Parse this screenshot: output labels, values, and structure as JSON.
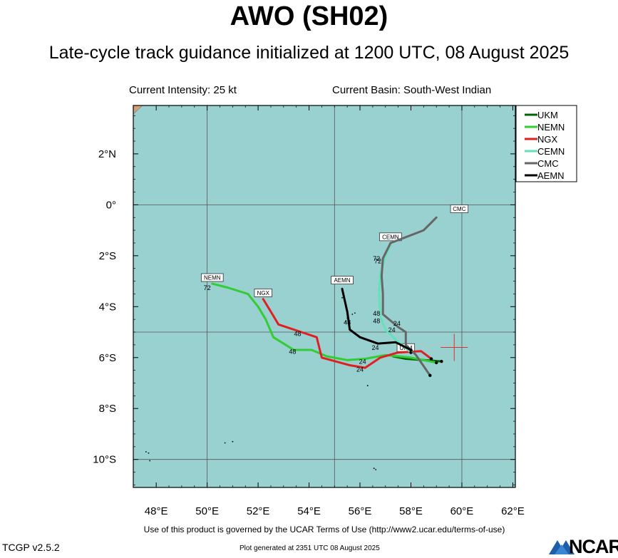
{
  "title": "AWO (SH02)",
  "subtitle": "Late-cycle track guidance initialized at 1200 UTC, 08 August 2025",
  "current_intensity": "Current Intensity: 25 kt",
  "current_basin": "Current Basin: South-West Indian",
  "footer": {
    "terms": "Use of this product is governed by the UCAR Terms of Use (http://www2.ucar.edu/terms-of-use)",
    "version": "TCGP v2.5.2",
    "generated": "Plot generated at 2351 UTC   08 August 2025",
    "logo_text": "NCAR"
  },
  "map": {
    "lon_range": [
      47.1,
      62.1
    ],
    "lat_range": [
      -11.1,
      3.9
    ],
    "lon_ticks": [
      {
        "value": 48,
        "label": "48°E"
      },
      {
        "value": 50,
        "label": "50°E"
      },
      {
        "value": 52,
        "label": "52°E"
      },
      {
        "value": 54,
        "label": "54°E"
      },
      {
        "value": 56,
        "label": "56°E"
      },
      {
        "value": 58,
        "label": "58°E"
      },
      {
        "value": 60,
        "label": "60°E"
      },
      {
        "value": 62,
        "label": "62°E"
      }
    ],
    "lat_ticks": [
      {
        "value": 2,
        "label": "2°N"
      },
      {
        "value": 0,
        "label": "0°"
      },
      {
        "value": -2,
        "label": "2°S"
      },
      {
        "value": -4,
        "label": "4°S"
      },
      {
        "value": -6,
        "label": "6°S"
      },
      {
        "value": -8,
        "label": "8°S"
      },
      {
        "value": -10,
        "label": "10°S"
      }
    ],
    "grid_lon": [
      50,
      55,
      60
    ],
    "grid_lat": [
      0,
      -5,
      -10
    ],
    "ocean_color": "#99d0d0",
    "current_position": {
      "lon": 59.7,
      "lat": -5.6
    },
    "legend_placement": "top-right"
  },
  "legend": [
    {
      "name": "UKM",
      "color": "#006400"
    },
    {
      "name": "NEMN",
      "color": "#33cc33"
    },
    {
      "name": "NGX",
      "color": "#e02020"
    },
    {
      "name": "CEMN",
      "color": "#66e0b8"
    },
    {
      "name": "CMC",
      "color": "#666666"
    },
    {
      "name": "AEMN",
      "color": "#000000"
    }
  ],
  "tracks": [
    {
      "name": "UKM",
      "color": "#006400",
      "label": "UKM",
      "label_pos": {
        "lon": 57.8,
        "lat": -5.65
      },
      "points": [
        [
          59.2,
          -6.15
        ],
        [
          58.5,
          -6.1
        ],
        [
          57.8,
          -6.05
        ],
        [
          57.3,
          -5.95
        ]
      ],
      "hour_labels": []
    },
    {
      "name": "NEMN",
      "color": "#33cc33",
      "label": "NEMN",
      "label_pos": {
        "lon": 50.2,
        "lat": -2.9
      },
      "points": [
        [
          59.0,
          -6.2
        ],
        [
          58.0,
          -6.0
        ],
        [
          57.0,
          -5.9
        ],
        [
          56.2,
          -6.05
        ],
        [
          55.5,
          -6.1
        ],
        [
          54.7,
          -5.95
        ],
        [
          54.1,
          -5.7
        ],
        [
          53.4,
          -5.7
        ],
        [
          52.6,
          -5.2
        ],
        [
          52.3,
          -4.5
        ],
        [
          52.0,
          -4.0
        ],
        [
          51.6,
          -3.5
        ],
        [
          50.8,
          -3.25
        ],
        [
          50.2,
          -3.1
        ]
      ],
      "hour_labels": [
        {
          "text": "24",
          "lon": 56.1,
          "lat": -6.25
        },
        {
          "text": "48",
          "lon": 53.35,
          "lat": -5.85
        },
        {
          "text": "72",
          "lon": 50.0,
          "lat": -3.35
        }
      ]
    },
    {
      "name": "NGX",
      "color": "#e02020",
      "label": "NGX",
      "label_pos": {
        "lon": 52.2,
        "lat": -3.5
      },
      "points": [
        [
          58.8,
          -6.05
        ],
        [
          58.4,
          -5.75
        ],
        [
          57.5,
          -5.8
        ],
        [
          56.8,
          -6.0
        ],
        [
          56.2,
          -6.4
        ],
        [
          55.6,
          -6.3
        ],
        [
          54.5,
          -6.0
        ],
        [
          54.3,
          -5.2
        ],
        [
          53.7,
          -5.0
        ],
        [
          52.8,
          -4.7
        ],
        [
          52.5,
          -4.2
        ],
        [
          52.2,
          -3.7
        ]
      ],
      "hour_labels": [
        {
          "text": "24",
          "lon": 56.0,
          "lat": -6.55
        },
        {
          "text": "48",
          "lon": 53.55,
          "lat": -5.15
        }
      ]
    },
    {
      "name": "CEMN",
      "color": "#66e0b8",
      "label": "CEMN",
      "label_pos": {
        "lon": 57.2,
        "lat": -1.3
      },
      "points": [
        [
          58.0,
          -5.8
        ],
        [
          57.4,
          -5.3
        ],
        [
          57.0,
          -4.9
        ],
        [
          56.8,
          -4.4
        ],
        [
          56.75,
          -3.5
        ],
        [
          56.8,
          -2.7
        ],
        [
          57.0,
          -2.0
        ],
        [
          57.2,
          -1.6
        ]
      ],
      "hour_labels": [
        {
          "text": "24",
          "lon": 57.25,
          "lat": -5.0
        },
        {
          "text": "48",
          "lon": 56.65,
          "lat": -4.35
        },
        {
          "text": "72",
          "lon": 56.7,
          "lat": -2.3
        }
      ]
    },
    {
      "name": "CMC",
      "color": "#666666",
      "label": "CMC",
      "label_pos": {
        "lon": 59.9,
        "lat": -0.2
      },
      "points": [
        [
          58.75,
          -6.7
        ],
        [
          58.2,
          -5.9
        ],
        [
          57.8,
          -5.5
        ],
        [
          57.8,
          -5.0
        ],
        [
          57.5,
          -4.8
        ],
        [
          56.9,
          -4.3
        ],
        [
          56.9,
          -3.5
        ],
        [
          56.85,
          -2.8
        ],
        [
          56.9,
          -2.1
        ],
        [
          57.2,
          -1.5
        ],
        [
          58.5,
          -1.0
        ],
        [
          59.0,
          -0.5
        ]
      ],
      "hour_labels": [
        {
          "text": "24",
          "lon": 57.45,
          "lat": -4.75
        },
        {
          "text": "48",
          "lon": 56.65,
          "lat": -4.65
        },
        {
          "text": "72",
          "lon": 56.65,
          "lat": -2.2
        }
      ]
    },
    {
      "name": "AEMN",
      "color": "#000000",
      "label": "AEMN",
      "label_pos": {
        "lon": 55.3,
        "lat": -3.0
      },
      "points": [
        [
          58.0,
          -5.7
        ],
        [
          57.4,
          -5.4
        ],
        [
          56.7,
          -5.45
        ],
        [
          56.0,
          -5.2
        ],
        [
          55.6,
          -4.9
        ],
        [
          55.5,
          -4.2
        ],
        [
          55.3,
          -3.3
        ]
      ],
      "hour_labels": [
        {
          "text": "24",
          "lon": 56.6,
          "lat": -5.7
        },
        {
          "text": "48",
          "lon": 55.5,
          "lat": -4.7
        }
      ]
    }
  ]
}
